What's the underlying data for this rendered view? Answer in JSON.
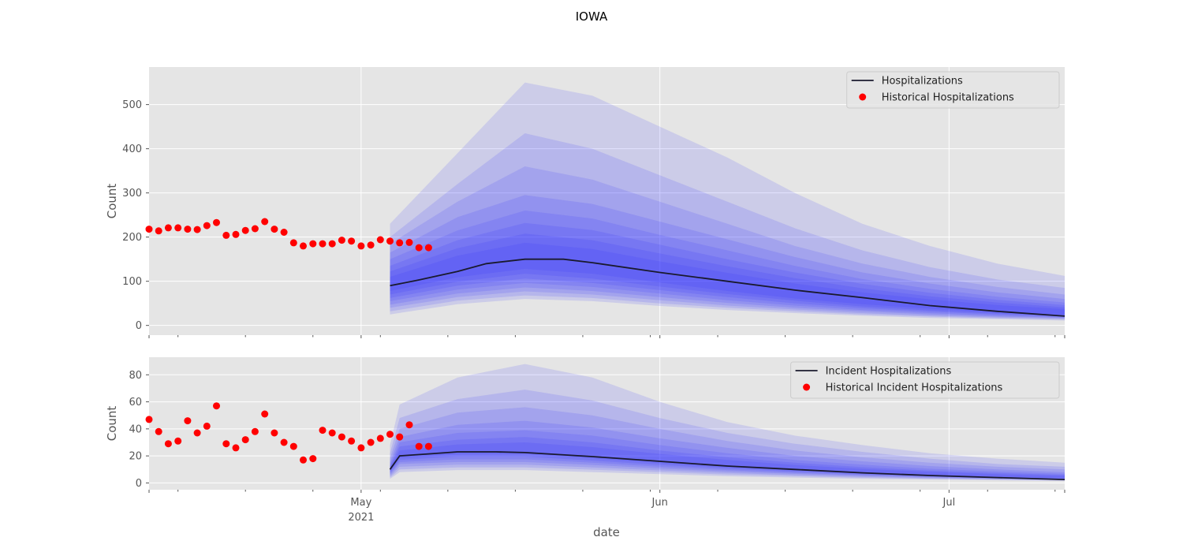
{
  "figure": {
    "title": "IOWA"
  },
  "colors": {
    "panel_bg": "#e5e5e5",
    "grid": "#ffffff",
    "band": "#2a2aff",
    "median": "#1a1a2e",
    "historical": "#ff0000",
    "text": "#555555"
  },
  "chart_data": [
    {
      "type": "line",
      "title": "",
      "xlabel": "date",
      "ylabel": "Count",
      "xlim": [
        "2021-04-09",
        "2021-07-13"
      ],
      "ylim": [
        -22,
        585
      ],
      "yticks": [
        0,
        100,
        200,
        300,
        400,
        500
      ],
      "grid": true,
      "legend_position": "top-right",
      "legend": [
        "Hospitalizations",
        "Historical Hospitalizations"
      ],
      "quantile_bands": {
        "dates": [
          "2021-05-04",
          "2021-05-11",
          "2021-05-18",
          "2021-05-25",
          "2021-06-01",
          "2021-06-08",
          "2021-06-15",
          "2021-06-22",
          "2021-06-29",
          "2021-07-06",
          "2021-07-13"
        ],
        "bands": [
          {
            "lower": [
              25,
              48,
              60,
              55,
              44,
              35,
              28,
              22,
              17,
              14,
              11
            ],
            "upper": [
              230,
              390,
              550,
              520,
              450,
              380,
              300,
              230,
              180,
              140,
              112
            ]
          },
          {
            "lower": [
              32,
              56,
              68,
              62,
              50,
              40,
              32,
              25,
              20,
              16,
              13
            ],
            "upper": [
              200,
              320,
              435,
              400,
              340,
              280,
              220,
              170,
              132,
              104,
              85
            ]
          },
          {
            "lower": [
              40,
              64,
              77,
              70,
              57,
              45,
              36,
              28,
              22,
              18,
              15
            ],
            "upper": [
              185,
              280,
              360,
              330,
              280,
              230,
              180,
              140,
              110,
              87,
              70
            ]
          },
          {
            "lower": [
              47,
              72,
              86,
              78,
              64,
              51,
              40,
              32,
              25,
              20,
              17
            ],
            "upper": [
              165,
              245,
              295,
              275,
              235,
              195,
              155,
              120,
              95,
              75,
              60
            ]
          },
          {
            "lower": [
              55,
              81,
              96,
              87,
              72,
              57,
              45,
              35,
              28,
              22,
              18
            ],
            "upper": [
              150,
              215,
              260,
              242,
              205,
              170,
              135,
              105,
              83,
              65,
              52
            ]
          },
          {
            "lower": [
              62,
              90,
              106,
              96,
              80,
              64,
              50,
              39,
              31,
              25,
              20
            ],
            "upper": [
              135,
              193,
              232,
              216,
              183,
              150,
              120,
              94,
              74,
              58,
              46
            ]
          },
          {
            "lower": [
              70,
              99,
              117,
              106,
              88,
              71,
              56,
              43,
              34,
              27,
              22
            ],
            "upper": [
              122,
              175,
              208,
              193,
              163,
              134,
              107,
              84,
              66,
              52,
              41
            ]
          },
          {
            "lower": [
              78,
              109,
              128,
              117,
              97,
              78,
              61,
              48,
              38,
              30,
              24
            ],
            "upper": [
              110,
              158,
              187,
              173,
              145,
              119,
              95,
              75,
              59,
              46,
              37
            ]
          }
        ]
      },
      "median": {
        "name": "Hospitalizations",
        "x": [
          "2021-05-04",
          "2021-05-07",
          "2021-05-11",
          "2021-05-14",
          "2021-05-18",
          "2021-05-22",
          "2021-05-25",
          "2021-06-01",
          "2021-06-08",
          "2021-06-15",
          "2021-06-22",
          "2021-06-29",
          "2021-07-06",
          "2021-07-13"
        ],
        "y": [
          90,
          103,
          122,
          140,
          150,
          150,
          142,
          120,
          100,
          80,
          63,
          45,
          32,
          21
        ]
      },
      "historical": {
        "name": "Historical Hospitalizations",
        "x": [
          "2021-04-09",
          "2021-04-10",
          "2021-04-11",
          "2021-04-12",
          "2021-04-13",
          "2021-04-14",
          "2021-04-15",
          "2021-04-16",
          "2021-04-17",
          "2021-04-18",
          "2021-04-19",
          "2021-04-20",
          "2021-04-21",
          "2021-04-22",
          "2021-04-23",
          "2021-04-24",
          "2021-04-25",
          "2021-04-26",
          "2021-04-27",
          "2021-04-28",
          "2021-04-29",
          "2021-04-30",
          "2021-05-01",
          "2021-05-02",
          "2021-05-03",
          "2021-05-04",
          "2021-05-05",
          "2021-05-06",
          "2021-05-07",
          "2021-05-08"
        ],
        "y": [
          218,
          214,
          221,
          221,
          218,
          217,
          226,
          233,
          204,
          206,
          215,
          219,
          235,
          218,
          211,
          187,
          180,
          185,
          185,
          185,
          193,
          191,
          180,
          182,
          194,
          191,
          187,
          188,
          176,
          176
        ]
      }
    },
    {
      "type": "line",
      "title": "",
      "xlabel": "date",
      "ylabel": "Count",
      "xlim": [
        "2021-04-09",
        "2021-07-13"
      ],
      "ylim": [
        -5,
        93
      ],
      "yticks": [
        0,
        20,
        40,
        60,
        80
      ],
      "xticks": [
        {
          "date": "2021-05-01",
          "label": "May",
          "sublabel": "2021"
        },
        {
          "date": "2021-06-01",
          "label": "Jun",
          "sublabel": ""
        },
        {
          "date": "2021-07-01",
          "label": "Jul",
          "sublabel": ""
        }
      ],
      "grid": true,
      "legend_position": "top-right",
      "legend": [
        "Incident Hospitalizations",
        "Historical Incident Hospitalizations"
      ],
      "quantile_bands": {
        "dates": [
          "2021-05-04",
          "2021-05-05",
          "2021-05-11",
          "2021-05-18",
          "2021-05-25",
          "2021-06-01",
          "2021-06-08",
          "2021-06-15",
          "2021-06-22",
          "2021-06-29",
          "2021-07-06",
          "2021-07-13"
        ],
        "bands": [
          {
            "lower": [
              3,
              8,
              9.5,
              9.5,
              8,
              6.5,
              5,
              4,
              3,
              2.5,
              2,
              1.5
            ],
            "upper": [
              28,
              58,
              78,
              88,
              78,
              60,
              45,
              35,
              28,
              22,
              18,
              15
            ]
          },
          {
            "lower": [
              4,
              10,
              11.5,
              11.5,
              9.8,
              8,
              6.2,
              5,
              3.8,
              3,
              2.4,
              1.8
            ],
            "upper": [
              22,
              48,
              62,
              69,
              61,
              48,
              37,
              29,
              23,
              18,
              14,
              12
            ]
          },
          {
            "lower": [
              5,
              12,
              13.5,
              13.5,
              11.5,
              9.3,
              7.4,
              5.8,
              4.5,
              3.5,
              2.8,
              2.2
            ],
            "upper": [
              18,
              40,
              52,
              56,
              50,
              40,
              31,
              24,
              19,
              15,
              12,
              10
            ]
          },
          {
            "lower": [
              6,
              14,
              15.5,
              15.5,
              13.3,
              10.7,
              8.5,
              6.7,
              5.2,
              4,
              3.2,
              2.5
            ],
            "upper": [
              15,
              34,
              43,
              46,
              41,
              33,
              26,
              20,
              16,
              12.5,
              10,
              8
            ]
          },
          {
            "lower": [
              7,
              15.5,
              17.5,
              17.5,
              15,
              12,
              9.5,
              7.5,
              5.8,
              4.5,
              3.6,
              2.8
            ],
            "upper": [
              13,
              30,
              37,
              39,
              35,
              28,
              22,
              17,
              13.5,
              10.5,
              8.5,
              6.8
            ]
          },
          {
            "lower": [
              8,
              17,
              19.5,
              19.5,
              16.5,
              13.3,
              10.5,
              8.3,
              6.4,
              5,
              4,
              3.1
            ],
            "upper": [
              12,
              27,
              32,
              34,
              30,
              24,
              19,
              15,
              11.7,
              9.2,
              7.4,
              5.9
            ]
          },
          {
            "lower": [
              8.5,
              18.5,
              21,
              21.5,
              18.2,
              14.6,
              11.5,
              9.1,
              7,
              5.5,
              4.4,
              3.4
            ],
            "upper": [
              11,
              24,
              28.5,
              30,
              26.5,
              21.5,
              17,
              13.3,
              10.4,
              8.2,
              6.5,
              5.2
            ]
          }
        ]
      },
      "median": {
        "name": "Incident Hospitalizations",
        "x": [
          "2021-05-04",
          "2021-05-05",
          "2021-05-08",
          "2021-05-11",
          "2021-05-15",
          "2021-05-18",
          "2021-05-25",
          "2021-06-01",
          "2021-06-08",
          "2021-06-15",
          "2021-06-22",
          "2021-06-29",
          "2021-07-06",
          "2021-07-13"
        ],
        "y": [
          10,
          20,
          21.5,
          23,
          23,
          22.5,
          19.5,
          16,
          12.5,
          10,
          7.5,
          5.5,
          4,
          2.5
        ]
      },
      "historical": {
        "name": "Historical Incident Hospitalizations",
        "x": [
          "2021-04-09",
          "2021-04-10",
          "2021-04-11",
          "2021-04-12",
          "2021-04-13",
          "2021-04-14",
          "2021-04-15",
          "2021-04-16",
          "2021-04-17",
          "2021-04-18",
          "2021-04-19",
          "2021-04-20",
          "2021-04-21",
          "2021-04-22",
          "2021-04-23",
          "2021-04-24",
          "2021-04-25",
          "2021-04-26",
          "2021-04-27",
          "2021-04-28",
          "2021-04-29",
          "2021-04-30",
          "2021-05-01",
          "2021-05-02",
          "2021-05-03",
          "2021-05-04",
          "2021-05-05",
          "2021-05-06",
          "2021-05-07",
          "2021-05-08"
        ],
        "y": [
          47,
          38,
          29,
          31,
          46,
          37,
          42,
          57,
          29,
          26,
          32,
          38,
          51,
          37,
          30,
          27,
          17,
          18,
          39,
          37,
          34,
          31,
          26,
          30,
          33,
          36,
          34,
          43,
          27,
          27
        ]
      }
    }
  ]
}
